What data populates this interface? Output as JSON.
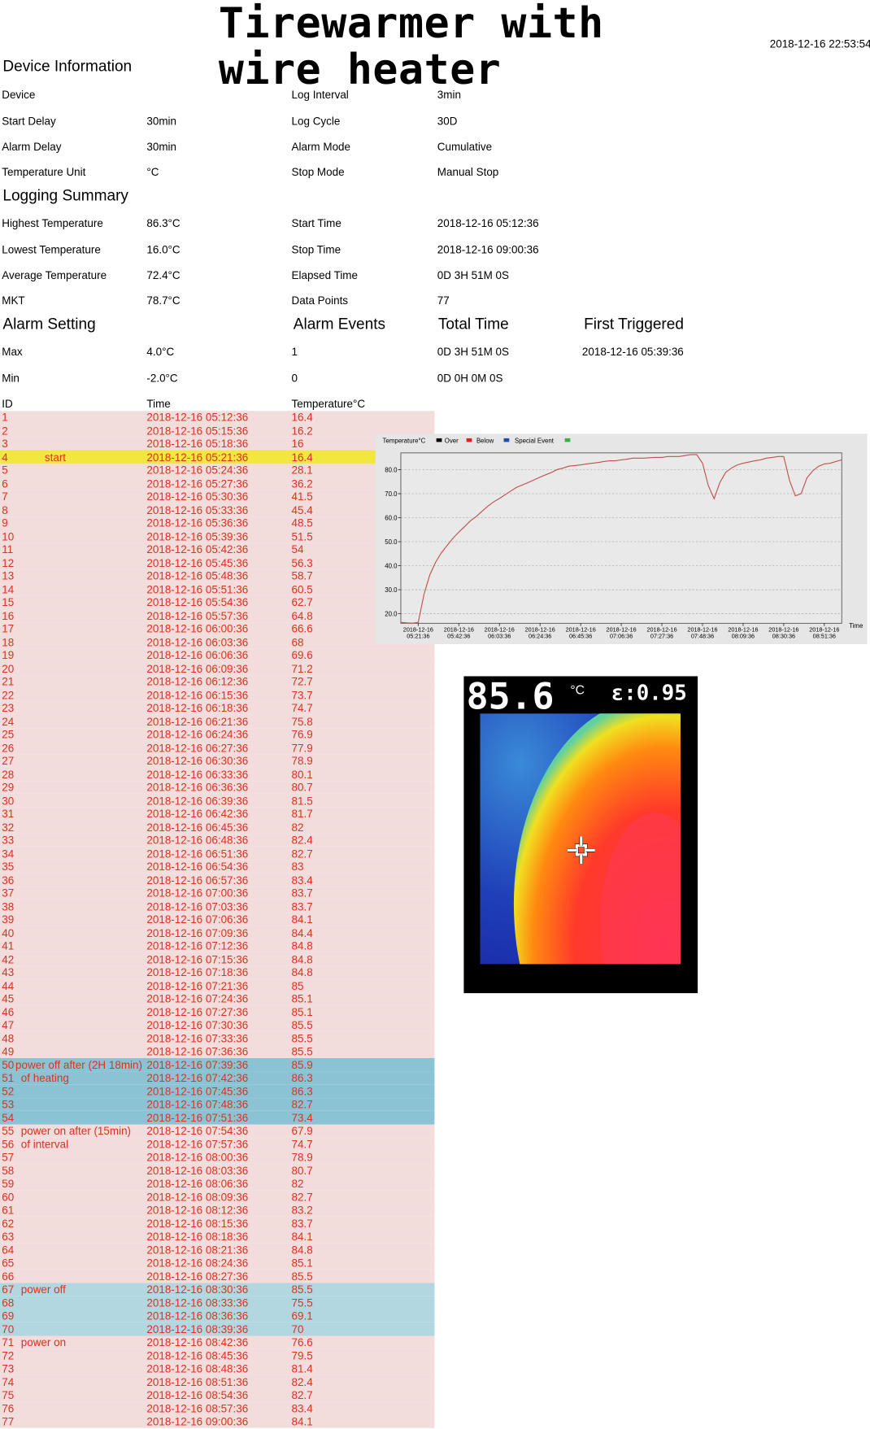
{
  "header": {
    "title": "Tirewarmer with wire heater",
    "date": "2018-12-16 22:53:54"
  },
  "device_information": {
    "title": "Device Information",
    "fields": [
      {
        "label": "Device"
      },
      {
        "label": "Start Delay",
        "value": "30min"
      },
      {
        "label": "Alarm Delay",
        "value": "30min"
      },
      {
        "label": "Temperature Unit",
        "value": "°C"
      },
      {
        "label": "Log Interval",
        "value": "3min"
      },
      {
        "label": "Log Cycle",
        "value": "30D"
      },
      {
        "label": "Alarm Mode",
        "value": "Cumulative"
      },
      {
        "label": "Stop Mode",
        "value": "Manual Stop"
      }
    ]
  },
  "logging_summary": {
    "title": "Logging Summary",
    "fields": [
      {
        "label": "Highest Temperature",
        "value": "86.3°C"
      },
      {
        "label": "Lowest Temperature",
        "value": "16.0°C"
      },
      {
        "label": "Average Temperature",
        "value": "72.4°C"
      },
      {
        "label": "MKT",
        "value": "78.7°C"
      },
      {
        "label": "Start Time",
        "value": "2018-12-16 05:12:36"
      },
      {
        "label": "Stop Time",
        "value": "2018-12-16 09:00:36"
      },
      {
        "label": "Elapsed Time",
        "value": "0D 3H 51M 0S"
      },
      {
        "label": "Data Points",
        "value": 77
      }
    ]
  },
  "alarm_setting": {
    "title": "Alarm Setting",
    "rows": [
      {
        "label": "Max",
        "value": "4.0°C"
      },
      {
        "label": "Min",
        "value": "-2.0°C"
      }
    ]
  },
  "alarm_events": {
    "headers": [
      "Alarm Events",
      "Total Time",
      "First Triggered"
    ],
    "rows": [
      [
        1,
        "0D 3H 51M 0S",
        "2018-12-16 05:39:36"
      ],
      [
        0,
        "0D 0H 0M 0S"
      ]
    ]
  },
  "table": {
    "headers": [
      "ID",
      "Time",
      "Temperature°C"
    ],
    "row_color": "#f2dcdc",
    "text_color": "#e0301e",
    "rows": [
      {
        "id": 1,
        "time": "2018-12-16 05:12:36",
        "temp": 16.4
      },
      {
        "id": 2,
        "time": "2018-12-16 05:15:36",
        "temp": 16.2
      },
      {
        "id": 3,
        "time": "2018-12-16 05:18:36",
        "temp": 16
      },
      {
        "id": 4,
        "time": "2018-12-16 05:21:36",
        "temp": 16.4,
        "note": "start",
        "highlight": "#f2e640"
      },
      {
        "id": 5,
        "time": "2018-12-16 05:24:36",
        "temp": 28.1
      },
      {
        "id": 6,
        "time": "2018-12-16 05:27:36",
        "temp": 36.2
      },
      {
        "id": 7,
        "time": "2018-12-16 05:30:36",
        "temp": 41.5
      },
      {
        "id": 8,
        "time": "2018-12-16 05:33:36",
        "temp": 45.4
      },
      {
        "id": 9,
        "time": "2018-12-16 05:36:36",
        "temp": 48.5
      },
      {
        "id": 10,
        "time": "2018-12-16 05:39:36",
        "temp": 51.5
      },
      {
        "id": 11,
        "time": "2018-12-16 05:42:36",
        "temp": 54
      },
      {
        "id": 12,
        "time": "2018-12-16 05:45:36",
        "temp": 56.3
      },
      {
        "id": 13,
        "time": "2018-12-16 05:48:36",
        "temp": 58.7
      },
      {
        "id": 14,
        "time": "2018-12-16 05:51:36",
        "temp": 60.5
      },
      {
        "id": 15,
        "time": "2018-12-16 05:54:36",
        "temp": 62.7
      },
      {
        "id": 16,
        "time": "2018-12-16 05:57:36",
        "temp": 64.8
      },
      {
        "id": 17,
        "time": "2018-12-16 06:00:36",
        "temp": 66.6
      },
      {
        "id": 18,
        "time": "2018-12-16 06:03:36",
        "temp": 68
      },
      {
        "id": 19,
        "time": "2018-12-16 06:06:36",
        "temp": 69.6
      },
      {
        "id": 20,
        "time": "2018-12-16 06:09:36",
        "temp": 71.2
      },
      {
        "id": 21,
        "time": "2018-12-16 06:12:36",
        "temp": 72.7
      },
      {
        "id": 22,
        "time": "2018-12-16 06:15:36",
        "temp": 73.7
      },
      {
        "id": 23,
        "time": "2018-12-16 06:18:36",
        "temp": 74.7
      },
      {
        "id": 24,
        "time": "2018-12-16 06:21:36",
        "temp": 75.8
      },
      {
        "id": 25,
        "time": "2018-12-16 06:24:36",
        "temp": 76.9
      },
      {
        "id": 26,
        "time": "2018-12-16 06:27:36",
        "temp": 77.9
      },
      {
        "id": 27,
        "time": "2018-12-16 06:30:36",
        "temp": 78.9
      },
      {
        "id": 28,
        "time": "2018-12-16 06:33:36",
        "temp": 80.1
      },
      {
        "id": 29,
        "time": "2018-12-16 06:36:36",
        "temp": 80.7
      },
      {
        "id": 30,
        "time": "2018-12-16 06:39:36",
        "temp": 81.5
      },
      {
        "id": 31,
        "time": "2018-12-16 06:42:36",
        "temp": 81.7
      },
      {
        "id": 32,
        "time": "2018-12-16 06:45:36",
        "temp": 82
      },
      {
        "id": 33,
        "time": "2018-12-16 06:48:36",
        "temp": 82.4
      },
      {
        "id": 34,
        "time": "2018-12-16 06:51:36",
        "temp": 82.7
      },
      {
        "id": 35,
        "time": "2018-12-16 06:54:36",
        "temp": 83
      },
      {
        "id": 36,
        "time": "2018-12-16 06:57:36",
        "temp": 83.4
      },
      {
        "id": 37,
        "time": "2018-12-16 07:00:36",
        "temp": 83.7
      },
      {
        "id": 38,
        "time": "2018-12-16 07:03:36",
        "temp": 83.7
      },
      {
        "id": 39,
        "time": "2018-12-16 07:06:36",
        "temp": 84.1
      },
      {
        "id": 40,
        "time": "2018-12-16 07:09:36",
        "temp": 84.4
      },
      {
        "id": 41,
        "time": "2018-12-16 07:12:36",
        "temp": 84.8
      },
      {
        "id": 42,
        "time": "2018-12-16 07:15:36",
        "temp": 84.8
      },
      {
        "id": 43,
        "time": "2018-12-16 07:18:36",
        "temp": 84.8
      },
      {
        "id": 44,
        "time": "2018-12-16 07:21:36",
        "temp": 85
      },
      {
        "id": 45,
        "time": "2018-12-16 07:24:36",
        "temp": 85.1
      },
      {
        "id": 46,
        "time": "2018-12-16 07:27:36",
        "temp": 85.1
      },
      {
        "id": 47,
        "time": "2018-12-16 07:30:36",
        "temp": 85.5
      },
      {
        "id": 48,
        "time": "2018-12-16 07:33:36",
        "temp": 85.5
      },
      {
        "id": 49,
        "time": "2018-12-16 07:36:36",
        "temp": 85.5
      },
      {
        "id": 50,
        "time": "2018-12-16 07:39:36",
        "temp": 85.9,
        "note": "power off  after (2H 18min)",
        "highlight": "#8cc3d4"
      },
      {
        "id": 51,
        "time": "2018-12-16 07:42:36",
        "temp": 86.3,
        "note": "of heating",
        "highlight": "#8cc3d4"
      },
      {
        "id": 52,
        "time": "2018-12-16 07:45:36",
        "temp": 86.3,
        "highlight": "#8cc3d4"
      },
      {
        "id": 53,
        "time": "2018-12-16 07:48:36",
        "temp": 82.7,
        "highlight": "#8cc3d4"
      },
      {
        "id": 54,
        "time": "2018-12-16 07:51:36",
        "temp": 73.4,
        "highlight": "#8cc3d4"
      },
      {
        "id": 55,
        "time": "2018-12-16 07:54:36",
        "temp": 67.9,
        "note": "power on after (15min)"
      },
      {
        "id": 56,
        "time": "2018-12-16 07:57:36",
        "temp": 74.7,
        "note": "of interval"
      },
      {
        "id": 57,
        "time": "2018-12-16 08:00:36",
        "temp": 78.9
      },
      {
        "id": 58,
        "time": "2018-12-16 08:03:36",
        "temp": 80.7
      },
      {
        "id": 59,
        "time": "2018-12-16 08:06:36",
        "temp": 82
      },
      {
        "id": 60,
        "time": "2018-12-16 08:09:36",
        "temp": 82.7
      },
      {
        "id": 61,
        "time": "2018-12-16 08:12:36",
        "temp": 83.2
      },
      {
        "id": 62,
        "time": "2018-12-16 08:15:36",
        "temp": 83.7
      },
      {
        "id": 63,
        "time": "2018-12-16 08:18:36",
        "temp": 84.1
      },
      {
        "id": 64,
        "time": "2018-12-16 08:21:36",
        "temp": 84.8
      },
      {
        "id": 65,
        "time": "2018-12-16 08:24:36",
        "temp": 85.1
      },
      {
        "id": 66,
        "time": "2018-12-16 08:27:36",
        "temp": 85.5
      },
      {
        "id": 67,
        "time": "2018-12-16 08:30:36",
        "temp": 85.5,
        "note": "power off",
        "highlight": "#b3d7e1"
      },
      {
        "id": 68,
        "time": "2018-12-16 08:33:36",
        "temp": 75.5,
        "highlight": "#b3d7e1"
      },
      {
        "id": 69,
        "time": "2018-12-16 08:36:36",
        "temp": 69.1,
        "highlight": "#b3d7e1"
      },
      {
        "id": 70,
        "time": "2018-12-16 08:39:36",
        "temp": 70,
        "highlight": "#b3d7e1"
      },
      {
        "id": 71,
        "time": "2018-12-16 08:42:36",
        "temp": 76.6,
        "note": "power on"
      },
      {
        "id": 72,
        "time": "2018-12-16 08:45:36",
        "temp": 79.5
      },
      {
        "id": 73,
        "time": "2018-12-16 08:48:36",
        "temp": 81.4
      },
      {
        "id": 74,
        "time": "2018-12-16 08:51:36",
        "temp": 82.4
      },
      {
        "id": 75,
        "time": "2018-12-16 08:54:36",
        "temp": 82.7
      },
      {
        "id": 76,
        "time": "2018-12-16 08:57:36",
        "temp": 83.4
      },
      {
        "id": 77,
        "time": "2018-12-16 09:00:36",
        "temp": 84.1
      }
    ]
  },
  "chart": {
    "type": "line",
    "y_label": "Temperature°C",
    "x_label": "Time",
    "color": "#c0504d",
    "grid": true,
    "legend": [
      {
        "name": "Over",
        "color": "#000000"
      },
      {
        "name": "Below",
        "color": "#e02020"
      },
      {
        "name": "Special Event",
        "color": "#1f4fa8"
      },
      {
        "color": "#3cb043"
      }
    ],
    "ylim": [
      16,
      87
    ],
    "yticks": [
      {
        "value": 20,
        "label": "20.0"
      },
      {
        "value": 30,
        "label": "30.0"
      },
      {
        "value": 40,
        "label": "40.0"
      },
      {
        "value": 50,
        "label": "50.0"
      },
      {
        "value": 60,
        "label": "60.0"
      },
      {
        "value": 70,
        "label": "70.0"
      },
      {
        "value": 80,
        "label": "80.0"
      }
    ],
    "xlim": [
      "2018-12-16 05:12:36",
      "2018-12-16 09:00:36"
    ],
    "xticks": [
      {
        "value": "2018-12-16 05:21:36",
        "label": [
          "2018-12-16",
          "05:21:36"
        ]
      },
      {
        "value": "2018-12-16 05:42:36",
        "label": [
          "2018-12-16",
          "05:42:36"
        ]
      },
      {
        "value": "2018-12-16 06:03:36",
        "label": [
          "2018-12-16",
          "06:03:36"
        ]
      },
      {
        "value": "2018-12-16 06:24:36",
        "label": [
          "2018-12-16",
          "06:24:36"
        ]
      },
      {
        "value": "2018-12-16 06:45:36",
        "label": [
          "2018-12-16",
          "06:45:36"
        ]
      },
      {
        "value": "2018-12-16 07:06:36",
        "label": [
          "2018-12-16",
          "07:06:36"
        ]
      },
      {
        "value": "2018-12-16 07:27:36",
        "label": [
          "2018-12-16",
          "07:27:36"
        ]
      },
      {
        "value": "2018-12-16 07:48:36",
        "label": [
          "2018-12-16",
          "07:48:36"
        ]
      },
      {
        "value": "2018-12-16 08:09:36",
        "label": [
          "2018-12-16",
          "08:09:36"
        ]
      },
      {
        "value": "2018-12-16 08:30:36",
        "label": [
          "2018-12-16",
          "08:30:36"
        ]
      },
      {
        "value": "2018-12-16 08:51:36",
        "label": [
          "2018-12-16",
          "08:51:36"
        ]
      }
    ]
  },
  "thermal_image": {
    "reading": 85.6,
    "unit": "°C",
    "emissivity": "ε:0.95"
  }
}
